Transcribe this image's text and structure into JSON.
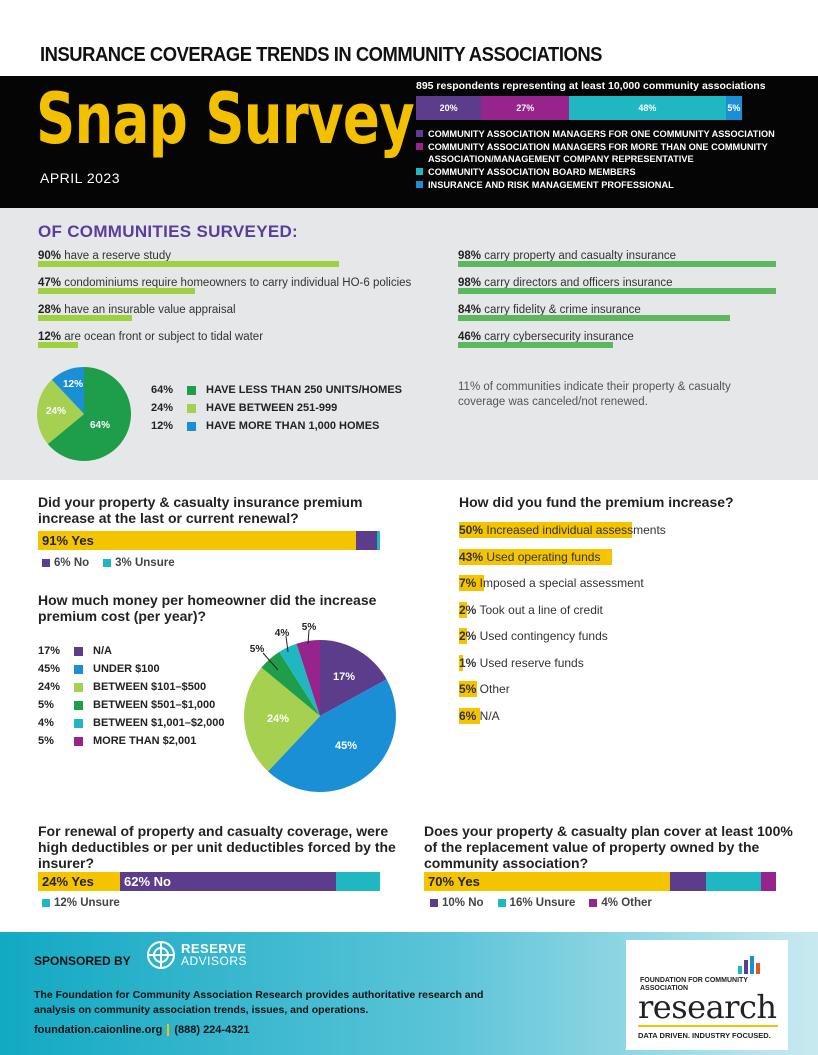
{
  "header": {
    "title": "INSURANCE COVERAGE TRENDS IN COMMUNITY ASSOCIATIONS",
    "snap": "Snap Survey",
    "date": "APRIL 2023",
    "respondents": "895 respondents representing at least 10,000 community associations",
    "bar": [
      {
        "label": "20%",
        "value": 20,
        "color": "#5b3d8c"
      },
      {
        "label": "27%",
        "value": 27,
        "color": "#97238c"
      },
      {
        "label": "48%",
        "value": 48,
        "color": "#1fb7c2"
      },
      {
        "label": "5%",
        "value": 5,
        "color": "#1b8fd6"
      }
    ],
    "legend": [
      {
        "label": "COMMUNITY ASSOCIATION MANAGERS FOR ONE COMMUNITY ASSOCIATION",
        "color": "#5b3d8c"
      },
      {
        "label": "COMMUNITY ASSOCIATION MANAGERS FOR MORE THAN ONE COMMUNITY ASSOCIATION/MANAGEMENT COMPANY REPRESENTATIVE",
        "color": "#97238c"
      },
      {
        "label": "COMMUNITY ASSOCIATION BOARD MEMBERS",
        "color": "#1fb7c2"
      },
      {
        "label": "INSURANCE AND RISK MANAGEMENT PROFESSIONAL",
        "color": "#1b8fd6"
      }
    ]
  },
  "surveyed": {
    "title": "OF COMMUNITIES SURVEYED:",
    "left_stats": [
      {
        "pct": "90%",
        "text": " have a reserve study",
        "value": 90
      },
      {
        "pct": "47%",
        "text": " condominiums require homeowners to carry individual HO-6 policies",
        "value": 47
      },
      {
        "pct": "28%",
        "text": " have an insurable value appraisal",
        "value": 28
      },
      {
        "pct": "12%",
        "text": " are ocean front or subject to tidal water",
        "value": 12
      }
    ],
    "right_stats": [
      {
        "pct": "98%",
        "text": " carry property and casualty insurance",
        "value": 98
      },
      {
        "pct": "98%",
        "text": " carry directors and officers insurance",
        "value": 98
      },
      {
        "pct": "84%",
        "text": " carry fidelity & crime insurance",
        "value": 84
      },
      {
        "pct": "46%",
        "text": " carry cybersecurity insurance",
        "value": 46
      }
    ],
    "size_pie": [
      {
        "pct": "64%",
        "label": "HAVE LESS THAN 250 UNITS/HOMES",
        "value": 64,
        "color": "#1e9e4a"
      },
      {
        "pct": "24%",
        "label": "HAVE BETWEEN 251-999",
        "value": 24,
        "color": "#a6d04f"
      },
      {
        "pct": "12%",
        "label": "HAVE MORE THAN 1,000 HOMES",
        "value": 12,
        "color": "#1b8fd6"
      }
    ],
    "canceled": "11% of communities indicate their property & casualty coverage was canceled/not renewed."
  },
  "q_premium": {
    "question": "Did your property & casualty insurance premium increase at the last or current renewal?",
    "yes": "91% Yes",
    "no": "6% No",
    "unsure": "3% Unsure",
    "values": [
      91,
      6,
      3
    ]
  },
  "q_amount": {
    "question": "How much money per homeowner did the increase premium cost (per year)?",
    "items": [
      {
        "pct": "17%",
        "label": "N/A",
        "value": 17,
        "color": "#5b3d8c"
      },
      {
        "pct": "45%",
        "label": "UNDER $100",
        "value": 45,
        "color": "#1b8fd6"
      },
      {
        "pct": "24%",
        "label": "BETWEEN $101–$500",
        "value": 24,
        "color": "#a6d04f"
      },
      {
        "pct": "5%",
        "label": "BETWEEN $501–$1,000",
        "value": 5,
        "color": "#1e9e4a"
      },
      {
        "pct": "4%",
        "label": "BETWEEN $1,001–$2,000",
        "value": 4,
        "color": "#1fb7c2"
      },
      {
        "pct": "5%",
        "label": "MORE THAN $2,001",
        "value": 5,
        "color": "#97238c"
      }
    ]
  },
  "q_fund": {
    "question": "How did you fund the premium increase?",
    "items": [
      {
        "pct": "50%",
        "text": " Increased individual assessments",
        "value": 50
      },
      {
        "pct": "43%",
        "text": " Used operating funds",
        "value": 43
      },
      {
        "pct": "7%",
        "text": " Imposed a special assessment",
        "value": 7
      },
      {
        "pct": "2%",
        "text": " Took out a line of credit",
        "value": 2
      },
      {
        "pct": "2%",
        "text": " Used contingency funds",
        "value": 2
      },
      {
        "pct": "1%",
        "text": " Used reserve funds",
        "value": 1
      },
      {
        "pct": "5%",
        "text": " Other",
        "value": 5
      },
      {
        "pct": "6%",
        "text": " N/A",
        "value": 6
      }
    ]
  },
  "q_deductible": {
    "question": "For renewal of property and casualty coverage, were high deductibles or per unit deductibles forced by the insurer?",
    "yes": "24% Yes",
    "no": "62% No",
    "unsure": "12% Unsure",
    "values": [
      24,
      62,
      12
    ]
  },
  "q_replacement": {
    "question": "Does your property & casualty plan cover at least 100% of the replacement value of property owned by the community association?",
    "yes": "70% Yes",
    "no": "10% No",
    "unsure": "16% Unsure",
    "other": "4% Other",
    "values": [
      70,
      10,
      16,
      4
    ]
  },
  "footer": {
    "sponsored": "SPONSORED BY",
    "sponsor_top": "RESERVE",
    "sponsor_bottom": "ADVISORS",
    "desc": "The Foundation for Community Association Research provides authoritative research and analysis on community association trends, issues, and operations.",
    "url": "foundation.caionline.org",
    "phone": "(888) 224-4321",
    "logo_small": "FOUNDATION FOR COMMUNITY ASSOCIATION",
    "logo_big": "research",
    "tagline": "DATA DRIVEN. INDUSTRY FOCUSED."
  },
  "colors": {
    "yellow": "#f5c400",
    "purple": "#5b3d8c",
    "magenta": "#97238c",
    "teal": "#1fb7c2",
    "blue": "#1b8fd6",
    "green": "#1e9e4a",
    "lime": "#a6d04f"
  }
}
